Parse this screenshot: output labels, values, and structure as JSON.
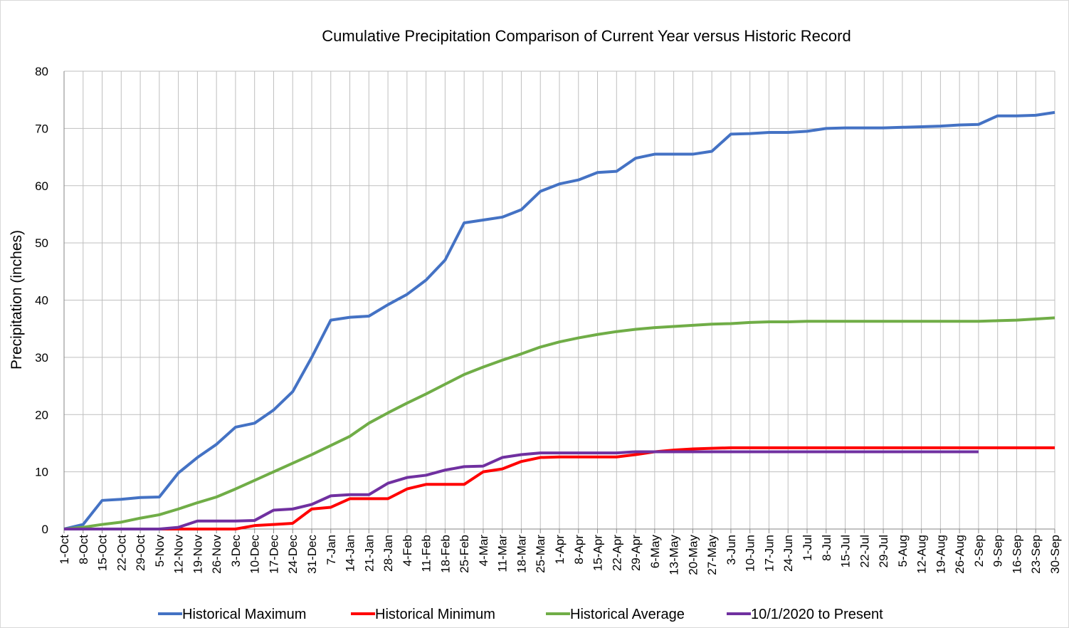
{
  "chart_data": {
    "type": "line",
    "title": "Cumulative Precipitation Comparison of Current Year versus Historic Record",
    "ylabel": "Precipitation (inches)",
    "xlim": [
      0,
      364
    ],
    "ylim": [
      0,
      80
    ],
    "yticks": [
      0,
      10,
      20,
      30,
      40,
      50,
      60,
      70,
      80
    ],
    "grid": true,
    "legend": "bottom",
    "xticks": [
      {
        "value": 0,
        "label": "1-Oct"
      },
      {
        "value": 7,
        "label": "8-Oct"
      },
      {
        "value": 14,
        "label": "15-Oct"
      },
      {
        "value": 21,
        "label": "22-Oct"
      },
      {
        "value": 28,
        "label": "29-Oct"
      },
      {
        "value": 35,
        "label": "5-Nov"
      },
      {
        "value": 42,
        "label": "12-Nov"
      },
      {
        "value": 49,
        "label": "19-Nov"
      },
      {
        "value": 56,
        "label": "26-Nov"
      },
      {
        "value": 63,
        "label": "3-Dec"
      },
      {
        "value": 70,
        "label": "10-Dec"
      },
      {
        "value": 77,
        "label": "17-Dec"
      },
      {
        "value": 84,
        "label": "24-Dec"
      },
      {
        "value": 91,
        "label": "31-Dec"
      },
      {
        "value": 98,
        "label": "7-Jan"
      },
      {
        "value": 105,
        "label": "14-Jan"
      },
      {
        "value": 112,
        "label": "21-Jan"
      },
      {
        "value": 119,
        "label": "28-Jan"
      },
      {
        "value": 126,
        "label": "4-Feb"
      },
      {
        "value": 133,
        "label": "11-Feb"
      },
      {
        "value": 140,
        "label": "18-Feb"
      },
      {
        "value": 147,
        "label": "25-Feb"
      },
      {
        "value": 154,
        "label": "4-Mar"
      },
      {
        "value": 161,
        "label": "11-Mar"
      },
      {
        "value": 168,
        "label": "18-Mar"
      },
      {
        "value": 175,
        "label": "25-Mar"
      },
      {
        "value": 182,
        "label": "1-Apr"
      },
      {
        "value": 189,
        "label": "8-Apr"
      },
      {
        "value": 196,
        "label": "15-Apr"
      },
      {
        "value": 203,
        "label": "22-Apr"
      },
      {
        "value": 210,
        "label": "29-Apr"
      },
      {
        "value": 217,
        "label": "6-May"
      },
      {
        "value": 224,
        "label": "13-May"
      },
      {
        "value": 231,
        "label": "20-May"
      },
      {
        "value": 238,
        "label": "27-May"
      },
      {
        "value": 245,
        "label": "3-Jun"
      },
      {
        "value": 252,
        "label": "10-Jun"
      },
      {
        "value": 259,
        "label": "17-Jun"
      },
      {
        "value": 266,
        "label": "24-Jun"
      },
      {
        "value": 273,
        "label": "1-Jul"
      },
      {
        "value": 280,
        "label": "8-Jul"
      },
      {
        "value": 287,
        "label": "15-Jul"
      },
      {
        "value": 294,
        "label": "22-Jul"
      },
      {
        "value": 301,
        "label": "29-Jul"
      },
      {
        "value": 308,
        "label": "5-Aug"
      },
      {
        "value": 315,
        "label": "12-Aug"
      },
      {
        "value": 322,
        "label": "19-Aug"
      },
      {
        "value": 329,
        "label": "26-Aug"
      },
      {
        "value": 336,
        "label": "2-Sep"
      },
      {
        "value": 343,
        "label": "9-Sep"
      },
      {
        "value": 350,
        "label": "16-Sep"
      },
      {
        "value": 357,
        "label": "23-Sep"
      },
      {
        "value": 364,
        "label": "30-Sep"
      }
    ],
    "x": [
      0,
      7,
      14,
      21,
      28,
      35,
      42,
      49,
      56,
      63,
      70,
      77,
      84,
      91,
      98,
      105,
      112,
      119,
      126,
      133,
      140,
      147,
      154,
      161,
      168,
      175,
      182,
      189,
      196,
      203,
      210,
      217,
      224,
      231,
      238,
      245,
      252,
      259,
      266,
      273,
      280,
      287,
      294,
      301,
      308,
      315,
      322,
      329,
      336,
      343,
      350,
      357,
      364
    ],
    "series": [
      {
        "name": "Historical Maximum",
        "color": "#4472c4",
        "values": [
          0,
          0.8,
          5,
          5.2,
          5.5,
          5.6,
          9.8,
          12.5,
          14.8,
          17.8,
          18.5,
          20.8,
          24,
          30,
          36.5,
          37,
          37.2,
          39.2,
          41,
          43.5,
          47,
          53.5,
          54,
          54.5,
          55.8,
          59,
          60.3,
          61,
          62.3,
          62.5,
          64.8,
          65.5,
          65.5,
          65.5,
          66,
          69,
          69.1,
          69.3,
          69.3,
          69.5,
          70,
          70.1,
          70.1,
          70.1,
          70.2,
          70.3,
          70.4,
          70.6,
          70.7,
          72.2,
          72.2,
          72.3,
          72.8
        ]
      },
      {
        "name": "Historical Minimum",
        "color": "#ff0000",
        "values": [
          0,
          0,
          0,
          0,
          0,
          0,
          0,
          0,
          0,
          0,
          0.6,
          0.8,
          1,
          3.5,
          3.8,
          5.3,
          5.3,
          5.3,
          7,
          7.8,
          7.8,
          7.8,
          10,
          10.5,
          11.8,
          12.5,
          12.6,
          12.6,
          12.6,
          12.6,
          13,
          13.5,
          13.8,
          14,
          14.1,
          14.2,
          14.2,
          14.2,
          14.2,
          14.2,
          14.2,
          14.2,
          14.2,
          14.2,
          14.2,
          14.2,
          14.2,
          14.2,
          14.2,
          14.2,
          14.2,
          14.2,
          14.2
        ]
      },
      {
        "name": "Historical Average",
        "color": "#70ad47",
        "values": [
          0,
          0.3,
          0.8,
          1.2,
          1.9,
          2.5,
          3.5,
          4.6,
          5.6,
          7,
          8.5,
          10,
          11.5,
          13,
          14.6,
          16.2,
          18.5,
          20.3,
          22,
          23.6,
          25.3,
          27,
          28.3,
          29.5,
          30.6,
          31.8,
          32.7,
          33.4,
          34,
          34.5,
          34.9,
          35.2,
          35.4,
          35.6,
          35.8,
          35.9,
          36.1,
          36.2,
          36.2,
          36.3,
          36.3,
          36.3,
          36.3,
          36.3,
          36.3,
          36.3,
          36.3,
          36.3,
          36.3,
          36.4,
          36.5,
          36.7,
          36.9
        ]
      },
      {
        "name": "10/1/2020 to Present",
        "color": "#7030a0",
        "values": [
          0,
          0,
          0,
          0,
          0,
          0,
          0.3,
          1.4,
          1.4,
          1.4,
          1.5,
          3.3,
          3.5,
          4.3,
          5.8,
          6,
          6,
          8,
          9,
          9.4,
          10.3,
          10.9,
          11,
          12.5,
          13,
          13.3,
          13.3,
          13.3,
          13.3,
          13.3,
          13.5,
          13.5,
          13.5,
          13.5,
          13.5,
          13.5,
          13.5,
          13.5,
          13.5,
          13.5,
          13.5,
          13.5,
          13.5,
          13.5,
          13.5,
          13.5,
          13.5,
          13.5,
          13.5,
          null,
          null,
          null,
          null
        ]
      }
    ]
  }
}
